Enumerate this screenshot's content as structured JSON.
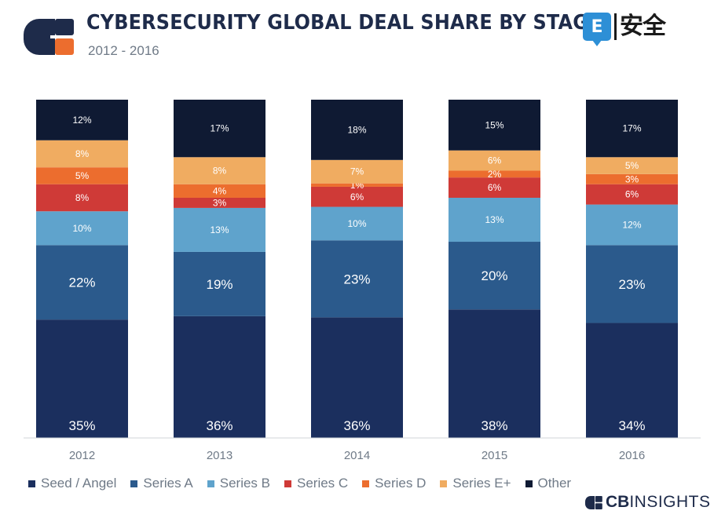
{
  "header": {
    "title": "CYBERSECURITY GLOBAL DEAL SHARE BY STAGE",
    "subtitle": "2012 - 2016",
    "watermark_text": "安全",
    "watermark_icon_letter": "E"
  },
  "brand": {
    "bold": "CB",
    "light": "INSIGHTS",
    "icon": "cb-insights-logo-icon"
  },
  "logo_icon": "cb-insights-mark-icon",
  "colors": {
    "seed": "#1b2f5e",
    "series_a": "#2b5a8c",
    "series_b": "#5fa3cc",
    "series_c": "#cf3a37",
    "series_d": "#ec6d2e",
    "series_e": "#f0ac61",
    "other": "#0f1a33",
    "title": "#1e2b4a",
    "axis_text": "#6f7a87"
  },
  "chart_data": {
    "type": "bar",
    "stacked": true,
    "percent_stacked": true,
    "categories": [
      "2012",
      "2013",
      "2014",
      "2015",
      "2016"
    ],
    "series": [
      {
        "name": "Seed / Angel",
        "values": [
          35,
          36,
          36,
          38,
          34
        ],
        "labels": [
          "35%",
          "36%",
          "36%",
          "38%",
          "34%"
        ]
      },
      {
        "name": "Series A",
        "values": [
          22,
          19,
          23,
          20,
          23
        ],
        "labels": [
          "22%",
          "19%",
          "23%",
          "20%",
          "23%"
        ]
      },
      {
        "name": "Series B",
        "values": [
          10,
          13,
          10,
          13,
          12
        ],
        "labels": [
          "10%",
          "13%",
          "10%",
          "13%",
          "12%"
        ]
      },
      {
        "name": "Series C",
        "values": [
          8,
          3,
          6,
          6,
          6
        ],
        "labels": [
          "8%",
          "3%",
          "6%",
          "6%",
          "6%"
        ]
      },
      {
        "name": "Series D",
        "values": [
          5,
          4,
          1,
          2,
          3
        ],
        "labels": [
          "5%",
          "4%",
          "1%",
          "2%",
          "3%"
        ]
      },
      {
        "name": "Series E+",
        "values": [
          8,
          8,
          7,
          6,
          5
        ],
        "labels": [
          "8%",
          "8%",
          "7%",
          "6%",
          "5%"
        ]
      },
      {
        "name": "Other",
        "values": [
          12,
          17,
          18,
          15,
          17
        ],
        "labels": [
          "12%",
          "17%",
          "18%",
          "15%",
          "17%"
        ]
      }
    ],
    "title": "CYBERSECURITY GLOBAL DEAL SHARE BY STAGE",
    "subtitle": "2012 - 2016",
    "xlabel": "",
    "ylabel": "",
    "ylim": [
      0,
      100
    ],
    "grid": false,
    "legend": "bottom"
  }
}
